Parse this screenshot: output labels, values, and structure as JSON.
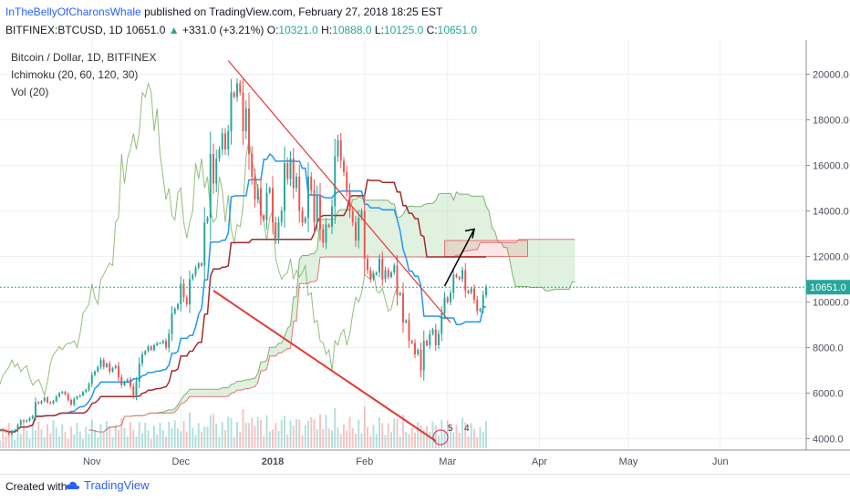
{
  "header": {
    "author": "InTheBellyOfCharonsWhale",
    "published": " published on TradingView.com, February 27, 2018 18:25 EST",
    "symbol": "BITFINEX:BTCUSD, 1D ",
    "last": "10651.0",
    "change": "+331.0 (+3.21%)",
    "o_label": "O:",
    "o_value": "10321.0",
    "h_label": "H:",
    "h_value": "10888.0",
    "l_label": "L:",
    "l_value": "10125.0",
    "c_label": "C:",
    "c_value": "10651.0"
  },
  "legend": {
    "series_title": "Bitcoin / Dollar, 1D, BITFINEX",
    "ichimoku": "Ichimoku (20, 60, 120, 30)",
    "volume": "Vol (20)"
  },
  "footer": {
    "created_with": "Created with",
    "brand": "TradingView"
  },
  "colors": {
    "up": "#26a69a",
    "down": "#ef5350",
    "tenkan": "#2196f3",
    "kijun": "#a52a2a",
    "cloud_up": "#a5d6a7",
    "cloud_down": "#f8bbd0",
    "chikou": "#6ba146",
    "trend": "#e53935"
  },
  "chart_data": {
    "type": "candlestick",
    "y_axis": {
      "ticks": [
        4000,
        6000,
        8000,
        10000,
        12000,
        14000,
        16000,
        18000,
        20000
      ],
      "tick_labels": [
        "4000.0",
        "6000.0",
        "8000.0",
        "10000.0",
        "12000.0",
        "14000.0",
        "16000.0",
        "18000.0",
        "20000.0"
      ],
      "ylim": [
        3500,
        21500
      ],
      "last_price_label": "10651.0"
    },
    "x_axis": {
      "tick_labels": [
        "Nov",
        "Dec",
        "2018",
        "Feb",
        "Mar",
        "Apr",
        "May",
        "Jun"
      ],
      "tick_dates": [
        "2017-11-01",
        "2017-12-01",
        "2018-01-01",
        "2018-02-01",
        "2018-03-01",
        "2018-04-01",
        "2018-05-01",
        "2018-06-01"
      ],
      "xlim": [
        "2017-10-01",
        "2018-06-30"
      ]
    },
    "closes": {
      "start_date": "2017-10-01",
      "values": [
        4400,
        4350,
        4300,
        4200,
        4350,
        4380,
        4600,
        4800,
        4750,
        4800,
        4900,
        5000,
        5600,
        5550,
        5650,
        5800,
        5600,
        5550,
        5650,
        5850,
        6000,
        6050,
        5950,
        5700,
        5500,
        5750,
        5850,
        5900,
        6050,
        6150,
        6400,
        6800,
        6950,
        7150,
        7450,
        7150,
        7300,
        6950,
        7100,
        7200,
        6700,
        6350,
        6500,
        6600,
        6300,
        5900,
        6500,
        7300,
        7700,
        7850,
        8050,
        7900,
        8100,
        8200,
        8200,
        8300,
        8000,
        8600,
        9500,
        9700,
        9900,
        10800,
        10200,
        9900,
        11000,
        11200,
        11500,
        11700,
        11600,
        13500,
        13700,
        16500,
        15200,
        16300,
        16700,
        17400,
        16700,
        17500,
        19200,
        19000,
        19600,
        19200,
        17500,
        18500,
        16500,
        15500,
        14500,
        15000,
        13800,
        13600,
        14800,
        15000,
        13500,
        12800,
        13500,
        14000,
        16100,
        15400,
        16300,
        15000,
        15500,
        14000,
        13500,
        13700,
        15500,
        14900,
        13500,
        14700,
        13200,
        12600,
        13400,
        13300,
        14200,
        16400,
        17100,
        16200,
        15700,
        14900,
        14000,
        13500,
        12700,
        13700,
        14000,
        11900,
        11400,
        11000,
        11200,
        11300,
        11900,
        11000,
        11400,
        11100,
        11300,
        11600,
        10300,
        10400,
        9100,
        9200,
        8300,
        8200,
        7700,
        7900,
        7000,
        8300,
        8100,
        8600,
        8800,
        8100,
        8600,
        9500,
        10200,
        10000,
        10400,
        11200,
        11100,
        11000,
        11400,
        10500,
        10400,
        10600,
        10100,
        9600,
        9700,
        10300,
        10650
      ]
    },
    "ichimoku": {
      "tenkan_sen": "blue line (20)",
      "kijun_sen": "brown line (60)",
      "senkou_span_b_future_top": 12700,
      "senkou_span_b_future_bottom": 12000,
      "kumo_future_low": 10000
    },
    "drawings": [
      {
        "name": "descending resistance trendline",
        "from": [
          "2017-12-17",
          20600
        ],
        "to": [
          "2018-03-02",
          9100
        ]
      },
      {
        "name": "descending support trendline",
        "from": [
          "2017-12-12",
          10500
        ],
        "to": [
          "2018-02-25",
          3900
        ]
      },
      {
        "name": "breakout arrow",
        "from": [
          "2018-02-28",
          10700
        ],
        "to": [
          "2018-03-10",
          13200
        ]
      }
    ],
    "volume_labels": [
      "5",
      "4"
    ]
  }
}
